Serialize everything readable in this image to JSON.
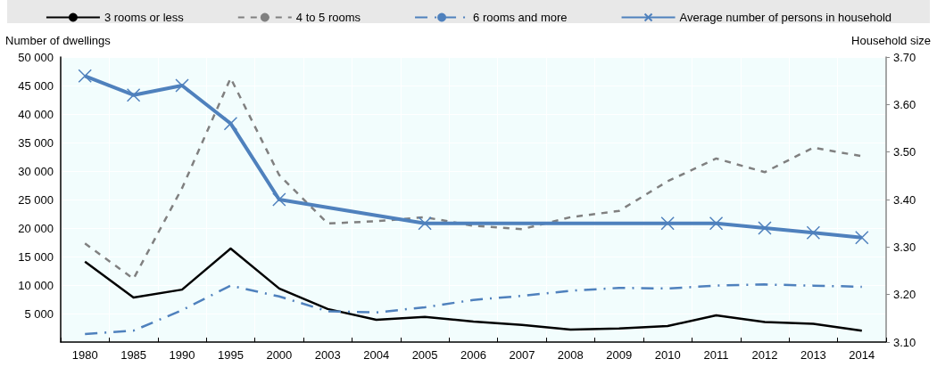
{
  "chart_data": {
    "type": "line",
    "ylabel": "Number of dwellings",
    "y2label": "Household size",
    "categories": [
      "1980",
      "1985",
      "1990",
      "1995",
      "2000",
      "2003",
      "2004",
      "2005",
      "2006",
      "2007",
      "2008",
      "2009",
      "2010",
      "2011",
      "2012",
      "2013",
      "2014"
    ],
    "series": [
      {
        "name": "3 rooms or less",
        "color": "#000000",
        "line_style": "solid",
        "marker": "none",
        "values": [
          14100,
          7800,
          9200,
          16400,
          9400,
          5800,
          3900,
          4400,
          3600,
          3000,
          2200,
          2400,
          2800,
          4700,
          3500,
          3200,
          2000
        ]
      },
      {
        "name": "4 to 5 rooms",
        "color": "#808080",
        "line_style": "dashed",
        "marker": "none",
        "values": [
          17300,
          11100,
          27000,
          46300,
          29300,
          20800,
          21200,
          21900,
          20400,
          19800,
          21900,
          23000,
          28200,
          32200,
          29800,
          34100,
          32600
        ]
      },
      {
        "name": "6 rooms and more",
        "color": "#4f81bd",
        "line_style": "dashdot",
        "marker": "none",
        "values": [
          1400,
          2000,
          5600,
          9900,
          8000,
          5400,
          5200,
          6100,
          7400,
          8100,
          9000,
          9500,
          9400,
          9900,
          10100,
          9900,
          9700
        ]
      },
      {
        "name": "Average number of persons in household",
        "color": "#4f81bd",
        "line_style": "solid",
        "marker": "cross",
        "axis": "y2",
        "values": [
          3.66,
          3.62,
          3.64,
          3.56,
          3.4,
          null,
          null,
          3.35,
          null,
          null,
          null,
          null,
          3.35,
          3.35,
          3.34,
          3.33,
          3.32
        ]
      }
    ],
    "ylim": [
      0,
      50000
    ],
    "yticks": [
      {
        "value": 0,
        "label": null
      },
      {
        "value": 5000,
        "label": "5 000"
      },
      {
        "value": 10000,
        "label": "10 000"
      },
      {
        "value": 15000,
        "label": "15 000"
      },
      {
        "value": 20000,
        "label": "20 000"
      },
      {
        "value": 25000,
        "label": "25 000"
      },
      {
        "value": 30000,
        "label": "30 000"
      },
      {
        "value": 35000,
        "label": "35 000"
      },
      {
        "value": 40000,
        "label": "40 000"
      },
      {
        "value": 45000,
        "label": "45 000"
      },
      {
        "value": 50000,
        "label": "50 000"
      }
    ],
    "y2lim": [
      3.1,
      3.7
    ],
    "y2ticks": [
      {
        "value": 3.1,
        "label": "3.10"
      },
      {
        "value": 3.2,
        "label": "3.20"
      },
      {
        "value": 3.3,
        "label": "3.30"
      },
      {
        "value": 3.4,
        "label": "3.40"
      },
      {
        "value": 3.5,
        "label": "3.50"
      },
      {
        "value": 3.6,
        "label": "3.60"
      },
      {
        "value": 3.7,
        "label": "3.70"
      }
    ],
    "grid": true,
    "legend": "top"
  }
}
